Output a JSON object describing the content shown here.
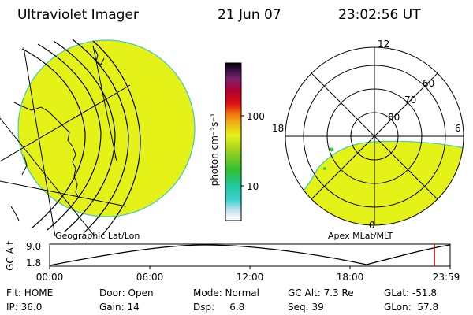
{
  "header": {
    "instrument": "Ultraviolet Imager",
    "date": "21 Jun 07",
    "time": "23:02:56 UT"
  },
  "colorbar": {
    "unit_label": "photon cm⁻²s⁻¹",
    "ticks": [
      {
        "label": "100",
        "value": 100
      },
      {
        "label": "10",
        "value": 10
      }
    ]
  },
  "left_panel": {
    "label": "Geographic Lat/Lon",
    "fill_color": "#e5f218"
  },
  "right_panel": {
    "label": "Apex MLat/MLT",
    "fill_color": "#e5f218",
    "mlt_labels": [
      {
        "label": "12",
        "angle_deg": 0
      },
      {
        "label": "6",
        "angle_deg": 90
      },
      {
        "label": "0",
        "angle_deg": 180
      },
      {
        "label": "18",
        "angle_deg": 270
      }
    ],
    "lat_labels": [
      {
        "label": "60",
        "lat": 60
      },
      {
        "label": "70",
        "lat": 70
      },
      {
        "label": "80",
        "lat": 80
      }
    ]
  },
  "altitude_plot": {
    "ylabel": "GC Alt",
    "yticks": [
      "9.0",
      "1.8"
    ],
    "xticks": [
      "00:00",
      "06:00",
      "12:00",
      "18:00",
      "23:59"
    ],
    "current_time_marker_hours": 23.05,
    "marker_color": "#e00000"
  },
  "info": {
    "filter": "Flt: HOME",
    "door": "Door: Open",
    "mode": "Mode: Normal",
    "gc_alt": "GC Alt: 7.3 Re",
    "glat": "GLat: -51.8",
    "ip": "IP: 36.0",
    "gain": "Gain: 14",
    "dsp": "Dsp:     6.8",
    "seq": "Seq: 39",
    "glon": "GLon:  57.8"
  }
}
